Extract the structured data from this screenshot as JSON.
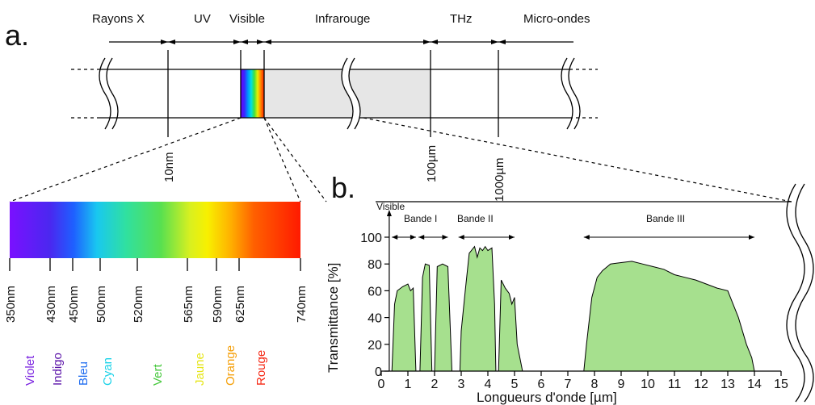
{
  "panel_a": {
    "label": "a.",
    "regions": [
      "Rayons X",
      "UV",
      "Visible",
      "Infrarouge",
      "THz",
      "Micro-ondes"
    ],
    "scale_marks": [
      "10nm",
      "100µm",
      "1000µm"
    ],
    "wavelength_ticks": [
      "350nm",
      "430nm",
      "450nm",
      "500nm",
      "520nm",
      "565nm",
      "590nm",
      "625nm",
      "740nm"
    ],
    "color_names": [
      {
        "name": "Violet",
        "color": "#7a22e0"
      },
      {
        "name": "Indigo",
        "color": "#5a12a8"
      },
      {
        "name": "Bleu",
        "color": "#1f6cf0"
      },
      {
        "name": "Cyan",
        "color": "#19d2e8"
      },
      {
        "name": "Vert",
        "color": "#46c83c"
      },
      {
        "name": "Jaune",
        "color": "#e6e619"
      },
      {
        "name": "Orange",
        "color": "#f5a00a"
      },
      {
        "name": "Rouge",
        "color": "#f52814"
      }
    ]
  },
  "panel_b": {
    "label": "b.",
    "band_labels": [
      "Visible",
      "Bande I",
      "Bande II",
      "Bande III"
    ],
    "chart_data": {
      "type": "area",
      "xlabel": "Longueurs d'onde [µm]",
      "ylabel": "Transmittance [%]",
      "xlim": [
        0,
        15
      ],
      "ylim": [
        0,
        100
      ],
      "xticks": [
        "0",
        "1",
        "2",
        "3",
        "4",
        "5",
        "6",
        "7",
        "8",
        "9",
        "10",
        "11",
        "12",
        "13",
        "14",
        "15"
      ],
      "yticks": [
        "0",
        "20",
        "40",
        "60",
        "80",
        "100"
      ],
      "fill_color": "#a6e08e",
      "series": [
        {
          "x": [
            0.4,
            0.5,
            0.6,
            0.8,
            1.0,
            1.1,
            1.2,
            1.3
          ],
          "y": [
            0,
            50,
            60,
            63,
            65,
            60,
            62,
            0
          ]
        },
        {
          "x": [
            1.45,
            1.55,
            1.65,
            1.8,
            1.9
          ],
          "y": [
            0,
            70,
            80,
            79,
            0
          ]
        },
        {
          "x": [
            2.0,
            2.1,
            2.3,
            2.5,
            2.65
          ],
          "y": [
            0,
            78,
            80,
            78,
            0
          ]
        },
        {
          "x": [
            2.95,
            3.0,
            3.15,
            3.3,
            3.5,
            3.6,
            3.7,
            3.8,
            3.9,
            4.0,
            4.15,
            4.25,
            4.3
          ],
          "y": [
            0,
            30,
            60,
            88,
            93,
            85,
            92,
            90,
            93,
            90,
            92,
            50,
            0
          ]
        },
        {
          "x": [
            4.4,
            4.5,
            4.65,
            4.8,
            4.9,
            5.0,
            5.1,
            5.2,
            5.3
          ],
          "y": [
            0,
            68,
            62,
            58,
            50,
            55,
            20,
            10,
            0
          ]
        },
        {
          "x": [
            7.6,
            7.7,
            7.9,
            8.1,
            8.3,
            8.6,
            9.0,
            9.4,
            9.8,
            10.2,
            10.6,
            11.0,
            11.4,
            11.8,
            12.2,
            12.6,
            13.0,
            13.4,
            13.7,
            13.9,
            14.0
          ],
          "y": [
            0,
            20,
            55,
            70,
            75,
            80,
            81,
            82,
            80,
            78,
            76,
            72,
            70,
            68,
            65,
            62,
            60,
            40,
            20,
            10,
            0
          ]
        }
      ]
    }
  }
}
